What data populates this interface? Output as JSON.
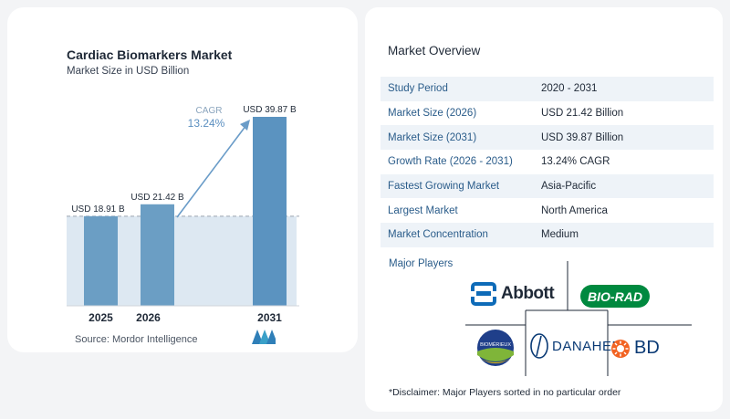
{
  "chart": {
    "title": "Cardiac Biomarkers Market",
    "subtitle": "Market Size in USD Billion",
    "source": "Source:  Mordor Intelligence",
    "cagr_label": "CAGR",
    "cagr_value": "13.24%"
  },
  "chart_data": {
    "type": "bar",
    "categories": [
      "2025",
      "2026",
      "2031"
    ],
    "values": [
      18.91,
      21.42,
      39.87
    ],
    "data_labels": [
      "USD 18.91 B",
      "USD 21.42 B",
      "USD 39.87 B"
    ],
    "title": "Cardiac Biomarkers Market",
    "subtitle": "Market Size in USD Billion",
    "ylim": [
      0,
      39.87
    ],
    "colors": {
      "bar": "#6b9ec4",
      "bar_highlight": "#5b93c0",
      "shade": "#dde8f2",
      "line": "#6a9cc8"
    }
  },
  "overview": {
    "title": "Market Overview",
    "rows": [
      {
        "label": "Study Period",
        "value": "2020 - 2031"
      },
      {
        "label": "Market Size (2026)",
        "value": "USD 21.42 Billion"
      },
      {
        "label": "Market Size (2031)",
        "value": "USD 39.87 Billion"
      },
      {
        "label": "Growth Rate (2026 - 2031)",
        "value": "13.24% CAGR"
      },
      {
        "label": "Fastest Growing Market",
        "value": "Asia-Pacific"
      },
      {
        "label": "Largest Market",
        "value": "North America"
      },
      {
        "label": "Market Concentration",
        "value": "Medium"
      }
    ]
  },
  "players": {
    "title": "Major Players",
    "logos": {
      "abbott": "Abbott",
      "biorad": "BIO-RAD",
      "biomerieux": "BIOMÉRIEUX",
      "danaher": "DANAHER",
      "bd": "BD"
    },
    "disclaimer": "*Disclaimer: Major Players sorted in no particular order"
  },
  "colors": {
    "accent": "#2a5c8a",
    "row_shade": "#eef3f8"
  }
}
